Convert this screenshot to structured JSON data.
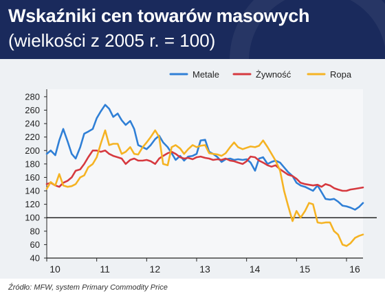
{
  "header": {
    "title": "Wskaźniki cen towarów masowych",
    "subtitle": "(wielkości z 2005 r. = 100)"
  },
  "footer": {
    "source": "Źródło: MFW, system Primary Commodity Price"
  },
  "colors": {
    "header_bg": "#1a2a5c",
    "metale": "#2f7fd6",
    "zywnosc": "#d6393f",
    "ropa": "#f5b323"
  },
  "chart_data": {
    "type": "line",
    "title": "Wskaźniki cen towarów masowych",
    "subtitle": "(wielkości z 2005 r. = 100)",
    "xlabel": "",
    "ylabel": "",
    "xlim": [
      10,
      16.33
    ],
    "ylim": [
      40,
      285
    ],
    "x_ticks": [
      "10",
      "11",
      "12",
      "13",
      "14",
      "15",
      "16"
    ],
    "y_ticks": [
      40,
      60,
      80,
      100,
      120,
      140,
      160,
      180,
      200,
      220,
      240,
      260,
      280
    ],
    "reference_line": 100,
    "grid": false,
    "legend_position": "top-right",
    "series": [
      {
        "name": "Metale",
        "color": "#2f7fd6",
        "x": [
          10.0,
          10.08,
          10.17,
          10.25,
          10.33,
          10.42,
          10.5,
          10.58,
          10.67,
          10.75,
          10.83,
          10.92,
          11.0,
          11.08,
          11.17,
          11.25,
          11.33,
          11.42,
          11.5,
          11.58,
          11.67,
          11.75,
          11.83,
          11.92,
          12.0,
          12.08,
          12.17,
          12.25,
          12.33,
          12.42,
          12.5,
          12.58,
          12.67,
          12.75,
          12.83,
          12.92,
          13.0,
          13.08,
          13.17,
          13.25,
          13.33,
          13.42,
          13.5,
          13.58,
          13.67,
          13.75,
          13.83,
          13.92,
          14.0,
          14.08,
          14.17,
          14.25,
          14.33,
          14.42,
          14.5,
          14.58,
          14.67,
          14.75,
          14.83,
          14.92,
          15.0,
          15.08,
          15.17,
          15.25,
          15.33,
          15.42,
          15.5,
          15.58,
          15.67,
          15.75,
          15.83,
          15.92,
          16.0,
          16.08,
          16.17,
          16.25,
          16.33
        ],
        "values": [
          195,
          200,
          193,
          215,
          232,
          213,
          195,
          188,
          205,
          225,
          228,
          232,
          248,
          258,
          268,
          262,
          250,
          255,
          245,
          238,
          244,
          232,
          208,
          205,
          202,
          208,
          217,
          222,
          212,
          205,
          196,
          186,
          192,
          185,
          191,
          192,
          195,
          215,
          216,
          198,
          195,
          190,
          183,
          187,
          188,
          186,
          187,
          186,
          187,
          182,
          170,
          188,
          190,
          180,
          183,
          185,
          182,
          175,
          168,
          162,
          152,
          148,
          146,
          143,
          140,
          148,
          138,
          128,
          127,
          128,
          124,
          118,
          117,
          115,
          112,
          116,
          122
        ]
      },
      {
        "name": "Żywność",
        "color": "#d6393f",
        "x": [
          10.0,
          10.08,
          10.17,
          10.25,
          10.33,
          10.42,
          10.5,
          10.58,
          10.67,
          10.75,
          10.83,
          10.92,
          11.0,
          11.08,
          11.17,
          11.25,
          11.33,
          11.42,
          11.5,
          11.58,
          11.67,
          11.75,
          11.83,
          11.92,
          12.0,
          12.08,
          12.17,
          12.25,
          12.33,
          12.42,
          12.5,
          12.58,
          12.67,
          12.75,
          12.83,
          12.92,
          13.0,
          13.08,
          13.17,
          13.25,
          13.33,
          13.42,
          13.5,
          13.58,
          13.67,
          13.75,
          13.83,
          13.92,
          14.0,
          14.08,
          14.17,
          14.25,
          14.33,
          14.42,
          14.5,
          14.58,
          14.67,
          14.75,
          14.83,
          14.92,
          15.0,
          15.08,
          15.17,
          15.25,
          15.33,
          15.42,
          15.5,
          15.58,
          15.67,
          15.75,
          15.83,
          15.92,
          16.0,
          16.08,
          16.17,
          16.25,
          16.33
        ],
        "values": [
          150,
          152,
          148,
          146,
          152,
          155,
          160,
          170,
          172,
          180,
          190,
          200,
          200,
          198,
          200,
          195,
          192,
          190,
          188,
          180,
          186,
          188,
          185,
          185,
          186,
          184,
          180,
          188,
          192,
          196,
          198,
          195,
          190,
          188,
          189,
          187,
          190,
          191,
          189,
          188,
          186,
          187,
          186,
          188,
          185,
          184,
          182,
          180,
          184,
          191,
          190,
          185,
          182,
          178,
          176,
          178,
          172,
          168,
          164,
          162,
          158,
          152,
          150,
          149,
          148,
          149,
          146,
          150,
          148,
          144,
          142,
          140,
          140,
          142,
          143,
          144,
          145
        ]
      },
      {
        "name": "Ropa",
        "color": "#f5b323",
        "x": [
          10.0,
          10.08,
          10.17,
          10.25,
          10.33,
          10.42,
          10.5,
          10.58,
          10.67,
          10.75,
          10.83,
          10.92,
          11.0,
          11.08,
          11.17,
          11.25,
          11.33,
          11.42,
          11.5,
          11.58,
          11.67,
          11.75,
          11.83,
          11.92,
          12.0,
          12.08,
          12.17,
          12.25,
          12.33,
          12.42,
          12.5,
          12.58,
          12.67,
          12.75,
          12.83,
          12.92,
          13.0,
          13.08,
          13.17,
          13.25,
          13.33,
          13.42,
          13.5,
          13.58,
          13.67,
          13.75,
          13.83,
          13.92,
          14.0,
          14.08,
          14.17,
          14.25,
          14.33,
          14.42,
          14.5,
          14.58,
          14.67,
          14.75,
          14.83,
          14.92,
          15.0,
          15.08,
          15.17,
          15.25,
          15.33,
          15.42,
          15.5,
          15.58,
          15.67,
          15.75,
          15.83,
          15.92,
          16.0,
          16.08,
          16.17,
          16.25,
          16.33
        ],
        "values": [
          143,
          153,
          148,
          165,
          148,
          146,
          147,
          150,
          160,
          163,
          175,
          180,
          190,
          210,
          230,
          208,
          210,
          210,
          195,
          198,
          205,
          195,
          194,
          205,
          212,
          220,
          230,
          220,
          180,
          178,
          205,
          208,
          203,
          195,
          202,
          208,
          205,
          207,
          208,
          196,
          195,
          194,
          192,
          196,
          205,
          212,
          205,
          202,
          204,
          206,
          205,
          207,
          215,
          205,
          195,
          185,
          170,
          140,
          118,
          95,
          110,
          100,
          110,
          122,
          120,
          93,
          92,
          93,
          93,
          80,
          75,
          60,
          58,
          62,
          70,
          73,
          75
        ]
      }
    ]
  }
}
